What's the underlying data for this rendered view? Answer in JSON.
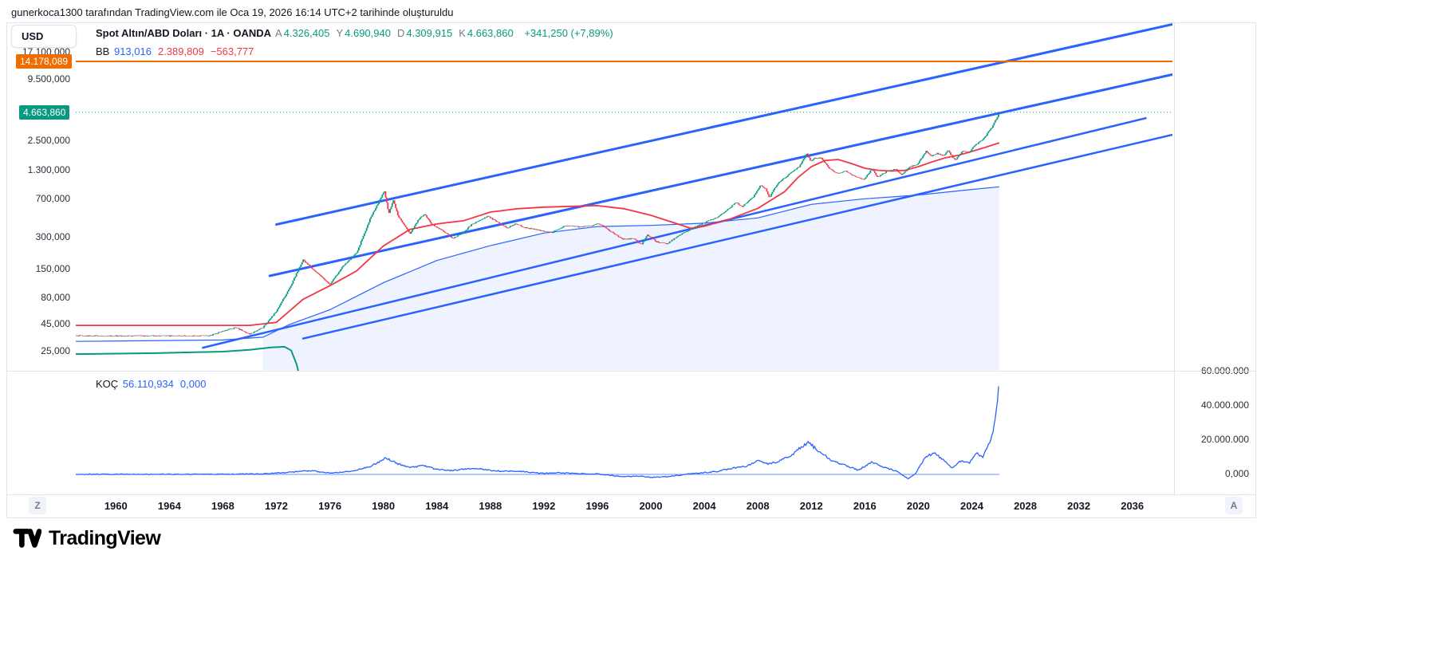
{
  "attribution": "gunerkoca1300 tarafından TradingView.com ile Oca 19, 2026 16:14 UTC+2 tarihinde oluşturuldu",
  "currency_button": "USD",
  "legend": {
    "title": "Spot Altın/ABD Doları · 1A · OANDA",
    "ohlc": [
      {
        "label": "A",
        "value": "4.326,405"
      },
      {
        "label": "Y",
        "value": "4.690,940"
      },
      {
        "label": "D",
        "value": "4.309,915"
      },
      {
        "label": "K",
        "value": "4.663,860"
      }
    ],
    "change": "+341,250 (+7,89%)",
    "bb": {
      "label": "BB",
      "values": [
        {
          "text": "913,016",
          "color": "#2962ff"
        },
        {
          "text": "2.389,809",
          "color": "#f23645"
        },
        {
          "text": "−563,777",
          "color": "#f23645"
        }
      ]
    }
  },
  "indicator_legend": {
    "label": "KOÇ",
    "values": [
      {
        "text": "56.110,934",
        "color": "#2962ff"
      },
      {
        "text": "0,000",
        "color": "#2962ff"
      }
    ]
  },
  "buttons": {
    "timezone": "Z",
    "autoscale": "A"
  },
  "logo_text": "TradingView",
  "chart_data": {
    "type": "candlestick",
    "symbol": "Spot Altın/ABD Doları",
    "interval": "1A",
    "exchange": "OANDA",
    "scale": "log",
    "x_axis": {
      "tick_years": [
        1960,
        1964,
        1968,
        1972,
        1976,
        1980,
        1984,
        1988,
        1992,
        1996,
        2000,
        2004,
        2008,
        2012,
        2016,
        2020,
        2024,
        2028,
        2032,
        2036
      ],
      "visible_range": [
        1957,
        2039
      ]
    },
    "main_pane": {
      "y_ticks": [
        {
          "label": "9.500,000",
          "value": 9500
        },
        {
          "label": "2.500,000",
          "value": 2500
        },
        {
          "label": "1.300,000",
          "value": 1300
        },
        {
          "label": "700,000",
          "value": 700
        },
        {
          "label": "300,000",
          "value": 300
        },
        {
          "label": "150,000",
          "value": 150
        },
        {
          "label": "80,000",
          "value": 80
        },
        {
          "label": "45,000",
          "value": 45
        },
        {
          "label": "25,000",
          "value": 25
        }
      ],
      "partially_hidden_tick": {
        "label": "17.100,000",
        "value": 17100
      },
      "current_price": {
        "value": 4663.86,
        "label": "4.663,860",
        "color": "#089981"
      },
      "horizontal_level": {
        "value": 14178.089,
        "label": "14.178,089",
        "color": "#ef6c00"
      },
      "candle_colors": {
        "up": "#089981",
        "down": "#f23645"
      },
      "band_fill_color": "rgba(41,98,255,0.08)",
      "trendline_color": "#2962ff",
      "trendlines": [
        {
          "from": [
            1972.0,
            400
          ],
          "to": [
            2039.5,
            33000
          ],
          "width": 3
        },
        {
          "from": [
            1971.5,
            130
          ],
          "to": [
            2039.5,
            11000
          ],
          "width": 3
        },
        {
          "from": [
            1966.5,
            27
          ],
          "to": [
            2037.0,
            4100
          ],
          "width": 2.5
        },
        {
          "from": [
            1974.0,
            33
          ],
          "to": [
            2039.5,
            2950
          ],
          "width": 2.5
        }
      ],
      "price_points": [
        [
          1957,
          35
        ],
        [
          1967,
          35
        ],
        [
          1968,
          39
        ],
        [
          1969,
          42
        ],
        [
          1970,
          36
        ],
        [
          1971,
          42
        ],
        [
          1972,
          60
        ],
        [
          1973,
          100
        ],
        [
          1974,
          185
        ],
        [
          1975,
          140
        ],
        [
          1976,
          108
        ],
        [
          1977,
          162
        ],
        [
          1978,
          215
        ],
        [
          1979,
          450
        ],
        [
          1980.08,
          835
        ],
        [
          1980.4,
          510
        ],
        [
          1980.75,
          680
        ],
        [
          1981.1,
          480
        ],
        [
          1982.0,
          330
        ],
        [
          1982.7,
          460
        ],
        [
          1983.1,
          500
        ],
        [
          1983.6,
          405
        ],
        [
          1984.5,
          345
        ],
        [
          1985.2,
          295
        ],
        [
          1985.9,
          330
        ],
        [
          1986.6,
          400
        ],
        [
          1987.8,
          480
        ],
        [
          1988.5,
          425
        ],
        [
          1989.3,
          370
        ],
        [
          1989.9,
          410
        ],
        [
          1990.5,
          375
        ],
        [
          1991.5,
          355
        ],
        [
          1992.6,
          335
        ],
        [
          1993.6,
          390
        ],
        [
          1994.6,
          380
        ],
        [
          1995.6,
          388
        ],
        [
          1996.1,
          410
        ],
        [
          1996.9,
          350
        ],
        [
          1997.9,
          290
        ],
        [
          1998.7,
          295
        ],
        [
          1999.3,
          258
        ],
        [
          1999.75,
          320
        ],
        [
          2000.4,
          275
        ],
        [
          2001.2,
          262
        ],
        [
          2002,
          310
        ],
        [
          2003,
          365
        ],
        [
          2004,
          415
        ],
        [
          2005,
          470
        ],
        [
          2006.4,
          650
        ],
        [
          2006.8,
          590
        ],
        [
          2007.7,
          740
        ],
        [
          2008.2,
          950
        ],
        [
          2008.6,
          870
        ],
        [
          2008.85,
          720
        ],
        [
          2009.5,
          990
        ],
        [
          2010.4,
          1220
        ],
        [
          2011.1,
          1420
        ],
        [
          2011.65,
          1900
        ],
        [
          2011.95,
          1590
        ],
        [
          2012.2,
          1700
        ],
        [
          2012.75,
          1720
        ],
        [
          2013.3,
          1380
        ],
        [
          2013.9,
          1220
        ],
        [
          2014.6,
          1290
        ],
        [
          2015.1,
          1170
        ],
        [
          2015.9,
          1060
        ],
        [
          2016.55,
          1360
        ],
        [
          2016.95,
          1130
        ],
        [
          2017.7,
          1290
        ],
        [
          2018.3,
          1340
        ],
        [
          2018.75,
          1180
        ],
        [
          2019.4,
          1420
        ],
        [
          2019.9,
          1480
        ],
        [
          2020.6,
          2000
        ],
        [
          2020.95,
          1780
        ],
        [
          2021.4,
          1900
        ],
        [
          2021.95,
          1790
        ],
        [
          2022.2,
          2040
        ],
        [
          2022.75,
          1630
        ],
        [
          2023.3,
          2000
        ],
        [
          2023.8,
          1930
        ],
        [
          2024.2,
          2250
        ],
        [
          2024.7,
          2500
        ],
        [
          2024.95,
          2650
        ],
        [
          2025.2,
          3000
        ],
        [
          2025.5,
          3350
        ],
        [
          2025.7,
          3800
        ],
        [
          2025.85,
          4050
        ],
        [
          2025.95,
          4300
        ],
        [
          2026.05,
          4664
        ]
      ],
      "bb_upper_red": [
        [
          1957,
          44
        ],
        [
          1970,
          44
        ],
        [
          1972,
          47
        ],
        [
          1974,
          78
        ],
        [
          1976,
          105
        ],
        [
          1978,
          145
        ],
        [
          1980,
          250
        ],
        [
          1982,
          360
        ],
        [
          1984,
          405
        ],
        [
          1986,
          435
        ],
        [
          1988,
          525
        ],
        [
          1990,
          565
        ],
        [
          1992,
          585
        ],
        [
          1994,
          595
        ],
        [
          1996,
          605
        ],
        [
          1998,
          565
        ],
        [
          2000,
          490
        ],
        [
          2002,
          405
        ],
        [
          2003,
          368
        ],
        [
          2004,
          385
        ],
        [
          2006,
          455
        ],
        [
          2008,
          570
        ],
        [
          2010,
          820
        ],
        [
          2011,
          1120
        ],
        [
          2012,
          1420
        ],
        [
          2013,
          1620
        ],
        [
          2014,
          1660
        ],
        [
          2015,
          1520
        ],
        [
          2016,
          1370
        ],
        [
          2017,
          1310
        ],
        [
          2018,
          1290
        ],
        [
          2019,
          1310
        ],
        [
          2020,
          1420
        ],
        [
          2021,
          1570
        ],
        [
          2022,
          1720
        ],
        [
          2023,
          1820
        ],
        [
          2024,
          1980
        ],
        [
          2025,
          2160
        ],
        [
          2026.05,
          2390
        ]
      ],
      "bb_basis_blue": [
        [
          1957,
          31
        ],
        [
          1968,
          32
        ],
        [
          1971,
          34
        ],
        [
          1973,
          45
        ],
        [
          1976,
          62
        ],
        [
          1980,
          112
        ],
        [
          1984,
          182
        ],
        [
          1988,
          252
        ],
        [
          1992,
          332
        ],
        [
          1996,
          382
        ],
        [
          2000,
          392
        ],
        [
          2004,
          412
        ],
        [
          2008,
          462
        ],
        [
          2012,
          622
        ],
        [
          2016,
          702
        ],
        [
          2020,
          762
        ],
        [
          2024,
          862
        ],
        [
          2026.05,
          913
        ]
      ],
      "green_series": [
        [
          1957,
          23.5
        ],
        [
          1963,
          24
        ],
        [
          1968,
          24.8
        ],
        [
          1970,
          25.8
        ],
        [
          1971.6,
          27.2
        ],
        [
          1972.6,
          27.6
        ],
        [
          1973.1,
          25.5
        ],
        [
          1973.5,
          19
        ],
        [
          1973.9,
          12
        ],
        [
          1974.1,
          9
        ]
      ]
    },
    "indicator_pane": {
      "name": "KOÇ",
      "last_value": 56110934,
      "zero_value": 0,
      "line_color": "#2962ff",
      "range": [
        -10000000,
        60000000
      ],
      "y_ticks": [
        {
          "label": "60.000.000",
          "value": 60000000
        },
        {
          "label": "40.000.000",
          "value": 40000000
        },
        {
          "label": "20.000.000",
          "value": 20000000
        },
        {
          "label": "0,000",
          "value": 0
        }
      ],
      "points_millions": [
        [
          1957,
          0.05
        ],
        [
          1968,
          0.1
        ],
        [
          1971,
          0.3
        ],
        [
          1973,
          1.2
        ],
        [
          1974.5,
          2.2
        ],
        [
          1976,
          0.9
        ],
        [
          1977.5,
          1.6
        ],
        [
          1979,
          4.5
        ],
        [
          1980.2,
          9.5
        ],
        [
          1981,
          6.5
        ],
        [
          1982,
          4
        ],
        [
          1983,
          5
        ],
        [
          1984,
          3
        ],
        [
          1985,
          2.2
        ],
        [
          1986,
          3
        ],
        [
          1987,
          3.5
        ],
        [
          1988,
          2.4
        ],
        [
          1989,
          1.8
        ],
        [
          1990,
          2
        ],
        [
          1991,
          1.2
        ],
        [
          1992,
          0.6
        ],
        [
          1993,
          1
        ],
        [
          1994,
          0.6
        ],
        [
          1995,
          0.4
        ],
        [
          1996,
          0.3
        ],
        [
          1997,
          -0.6
        ],
        [
          1998,
          -1.2
        ],
        [
          1999,
          -1
        ],
        [
          2000,
          -1.6
        ],
        [
          2001,
          -1.4
        ],
        [
          2002,
          -0.6
        ],
        [
          2003,
          0.4
        ],
        [
          2004,
          1
        ],
        [
          2005,
          1.8
        ],
        [
          2006,
          3.5
        ],
        [
          2007,
          4.5
        ],
        [
          2008,
          8
        ],
        [
          2008.8,
          6
        ],
        [
          2009.5,
          7.5
        ],
        [
          2010.5,
          11
        ],
        [
          2011.3,
          16.5
        ],
        [
          2011.8,
          18.5
        ],
        [
          2012.5,
          14
        ],
        [
          2013.5,
          8
        ],
        [
          2014.5,
          5.5
        ],
        [
          2015.5,
          2.5
        ],
        [
          2016.5,
          7
        ],
        [
          2017.5,
          4
        ],
        [
          2018.5,
          1.5
        ],
        [
          2019.2,
          -2.5
        ],
        [
          2019.8,
          0.5
        ],
        [
          2020.5,
          10
        ],
        [
          2021.2,
          12.5
        ],
        [
          2021.8,
          9
        ],
        [
          2022.5,
          3.5
        ],
        [
          2023.2,
          8
        ],
        [
          2023.8,
          6.5
        ],
        [
          2024.3,
          13
        ],
        [
          2024.8,
          10
        ],
        [
          2025.2,
          16
        ],
        [
          2025.5,
          22
        ],
        [
          2025.75,
          32
        ],
        [
          2025.95,
          45
        ],
        [
          2026.05,
          56.1
        ]
      ]
    }
  }
}
